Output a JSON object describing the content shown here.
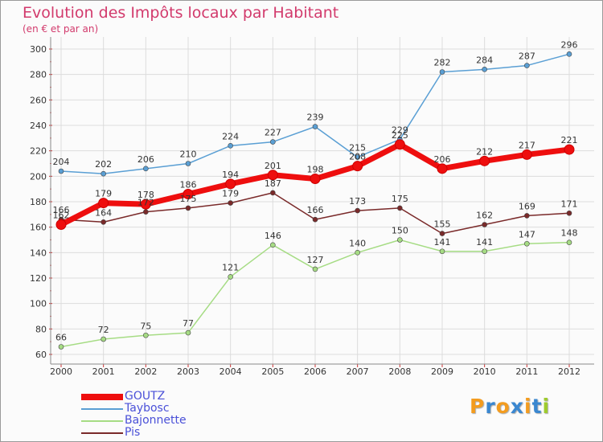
{
  "header": {
    "title": "Evolution des Impôts locaux par Habitant",
    "subtitle": "(en € et par an)"
  },
  "brand": {
    "text": "Proxiti",
    "colors": [
      "#f39c1f",
      "#3a87d0",
      "#f39c1f",
      "#3a87d0",
      "#f39c1f",
      "#3a87d0",
      "#9ecb2e"
    ]
  },
  "chart_data": {
    "type": "line",
    "title": "Evolution des Impôts locaux par Habitant",
    "subtitle": "(en € et par an)",
    "xlabel": "",
    "ylabel": "",
    "x": [
      "2000",
      "2001",
      "2002",
      "2003",
      "2004",
      "2005",
      "2006",
      "2007",
      "2008",
      "2009",
      "2010",
      "2011",
      "2012"
    ],
    "ylim": [
      60,
      300
    ],
    "yticks": [
      60,
      80,
      100,
      120,
      140,
      160,
      180,
      200,
      220,
      240,
      260,
      280,
      300
    ],
    "grid": true,
    "legend_position": "bottom-left",
    "series": [
      {
        "name": "GOUTZ",
        "color": "#ee0e0e",
        "values": [
          162,
          179,
          178,
          186,
          194,
          201,
          198,
          208,
          225,
          206,
          212,
          217,
          221
        ]
      },
      {
        "name": "Taybosc",
        "color": "#5a9fd4",
        "values": [
          204,
          202,
          206,
          210,
          224,
          227,
          239,
          215,
          229,
          282,
          284,
          287,
          296
        ]
      },
      {
        "name": "Bajonnette",
        "color": "#a6dc84",
        "values": [
          66,
          72,
          75,
          77,
          121,
          146,
          127,
          140,
          150,
          141,
          141,
          147,
          148
        ]
      },
      {
        "name": "Pis",
        "color": "#7a2a2a",
        "values": [
          166,
          164,
          172,
          175,
          179,
          187,
          166,
          173,
          175,
          155,
          162,
          169,
          171
        ]
      }
    ]
  }
}
